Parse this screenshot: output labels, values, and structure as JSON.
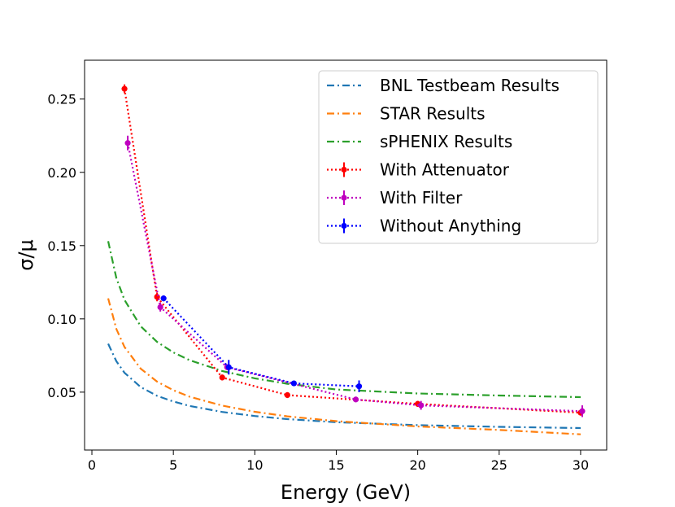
{
  "chart_data": {
    "type": "line",
    "title": "",
    "xlabel": "Energy (GeV)",
    "ylabel": "σ/μ",
    "xlim": [
      -0.45,
      31.6
    ],
    "ylim": [
      0.0105,
      0.2765
    ],
    "xticks": [
      0,
      5,
      10,
      15,
      20,
      25,
      30
    ],
    "xtick_labels": [
      "0",
      "5",
      "10",
      "15",
      "20",
      "25",
      "30"
    ],
    "yticks": [
      0.05,
      0.1,
      0.15,
      0.2,
      0.25
    ],
    "ytick_labels": [
      "0.05",
      "0.10",
      "0.15",
      "0.20",
      "0.25"
    ],
    "grid": false,
    "legend_position": "top-right",
    "curves": [
      {
        "name": "BNL Testbeam Results",
        "color": "#1f77b4",
        "x": [
          1,
          1.5,
          2,
          3,
          4,
          5,
          6,
          8,
          10,
          12,
          15,
          20,
          25,
          30
        ],
        "y": [
          0.083,
          0.0711,
          0.0632,
          0.0534,
          0.0475,
          0.0436,
          0.0406,
          0.0365,
          0.0337,
          0.0316,
          0.0295,
          0.0275,
          0.0263,
          0.0255
        ]
      },
      {
        "name": "STAR Results",
        "color": "#ff7f0e",
        "x": [
          1,
          1.5,
          2,
          3,
          4,
          5,
          6,
          8,
          10,
          12,
          15,
          20,
          25,
          30
        ],
        "y": [
          0.114,
          0.0931,
          0.0808,
          0.066,
          0.0572,
          0.0513,
          0.0469,
          0.0408,
          0.0366,
          0.0335,
          0.0302,
          0.0266,
          0.0242,
          0.0212
        ]
      },
      {
        "name": "sPHENIX Results",
        "color": "#2ca02c",
        "x": [
          1,
          1.5,
          2,
          3,
          4,
          5,
          6,
          8,
          10,
          12,
          15,
          20,
          25,
          30
        ],
        "y": [
          0.153,
          0.1278,
          0.1129,
          0.0949,
          0.0843,
          0.0771,
          0.0718,
          0.0644,
          0.0594,
          0.0557,
          0.0518,
          0.0491,
          0.0477,
          0.0466
        ]
      }
    ],
    "series": [
      {
        "name": "With Attenuator",
        "color": "#ff0000",
        "x": [
          2,
          4,
          8,
          12,
          20,
          30
        ],
        "y": [
          0.257,
          0.115,
          0.06,
          0.048,
          0.042,
          0.036
        ],
        "yerr": [
          0.003,
          0.003,
          0.002,
          0.002,
          0.002,
          0.002
        ]
      },
      {
        "name": "With Filter",
        "color": "#bf00bf",
        "x": [
          2.2,
          4.2,
          8.3,
          16.2,
          20.2,
          30.1
        ],
        "y": [
          0.22,
          0.108,
          0.067,
          0.045,
          0.041,
          0.037
        ],
        "yerr": [
          0.005,
          0.003,
          0.002,
          0.001,
          0.003,
          0.004
        ]
      },
      {
        "name": "Without Anything",
        "color": "#0000ff",
        "x": [
          4.4,
          8.4,
          12.4,
          16.4
        ],
        "y": [
          0.114,
          0.067,
          0.056,
          0.054
        ],
        "yerr": [
          0.002,
          0.005,
          0.001,
          0.004
        ]
      }
    ]
  }
}
